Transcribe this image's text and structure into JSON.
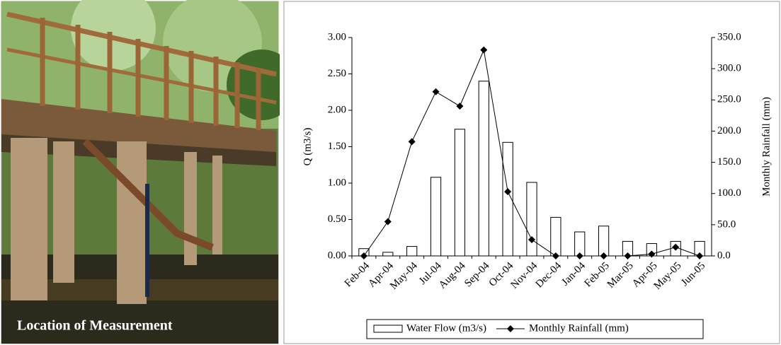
{
  "photo": {
    "caption": "Location of Measurement"
  },
  "chart_data": {
    "type": "bar",
    "categories": [
      "Feb-04",
      "Apr-04",
      "May-04",
      "Jul-04",
      "Aug-04",
      "Sep-04",
      "Oct-04",
      "Nov-04",
      "Dec-04",
      "Jan-04",
      "Feb-05",
      "Mar-05",
      "Apr-05",
      "May-05",
      "Jun-05"
    ],
    "series": [
      {
        "name": "Water Flow (m3/s)",
        "type": "bar",
        "color": "#ffffff",
        "values": [
          0.1,
          0.05,
          0.13,
          1.08,
          1.74,
          2.4,
          1.56,
          1.01,
          0.53,
          0.33,
          0.41,
          0.2,
          0.17,
          0.2,
          0.2
        ]
      },
      {
        "name": "Monthly Rainfall (mm)",
        "type": "line",
        "axis": "y2",
        "color": "#000000",
        "values": [
          0,
          55,
          183,
          263,
          240,
          330,
          103,
          26,
          0,
          0,
          0,
          0,
          3,
          14,
          0
        ]
      }
    ],
    "y_label": "Q (m3/s)",
    "y2_label": "Monthly Rainfall (mm)",
    "ylim": [
      0,
      3
    ],
    "yticks": [
      {
        "value": 0,
        "label": "0.00"
      },
      {
        "value": 0.5,
        "label": "0.50"
      },
      {
        "value": 1,
        "label": "1.00"
      },
      {
        "value": 1.5,
        "label": "1.50"
      },
      {
        "value": 2,
        "label": "2.00"
      },
      {
        "value": 2.5,
        "label": "2.50"
      },
      {
        "value": 3,
        "label": "3.00"
      }
    ],
    "y2lim": [
      0,
      350
    ],
    "y2ticks": [
      {
        "value": 0,
        "label": "0.0"
      },
      {
        "value": 50,
        "label": "50.0"
      },
      {
        "value": 100,
        "label": "100.0"
      },
      {
        "value": 150,
        "label": "150.0"
      },
      {
        "value": 200,
        "label": "200.0"
      },
      {
        "value": 250,
        "label": "250.0"
      },
      {
        "value": 300,
        "label": "300.0"
      },
      {
        "value": 350,
        "label": "350.0"
      }
    ],
    "legend": "bottom"
  }
}
